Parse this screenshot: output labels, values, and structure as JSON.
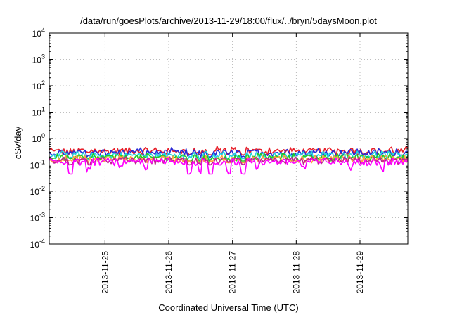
{
  "chart_data": {
    "type": "line",
    "title": "/data/run/goesPlots/archive/2013-11-29/18:00/flux/../bryn/5daysMoon.plot",
    "xlabel": "Coordinated Universal Time (UTC)",
    "ylabel": "cSv/day",
    "yscale": "log",
    "ylim": [
      0.0001,
      10000
    ],
    "xlim": [
      "2013-11-24 03:00",
      "2013-11-29 18:00"
    ],
    "y_ticks": [
      {
        "base": "10",
        "exp": "-4"
      },
      {
        "base": "10",
        "exp": "-3"
      },
      {
        "base": "10",
        "exp": "-2"
      },
      {
        "base": "10",
        "exp": "-1"
      },
      {
        "base": "10",
        "exp": "0"
      },
      {
        "base": "10",
        "exp": "1"
      },
      {
        "base": "10",
        "exp": "2"
      },
      {
        "base": "10",
        "exp": "3"
      },
      {
        "base": "10",
        "exp": "4"
      }
    ],
    "x_ticks": [
      "2013-11-25",
      "2013-11-26",
      "2013-11-27",
      "2013-11-28",
      "2013-11-29"
    ],
    "grid": true,
    "series": [
      {
        "color": "#e8202a",
        "base": 0.33,
        "min": 0.24,
        "max": 0.52
      },
      {
        "color": "#2a2ad8",
        "base": 0.29,
        "min": 0.2,
        "max": 0.45
      },
      {
        "color": "#20d4e0",
        "base": 0.23,
        "min": 0.16,
        "max": 0.33
      },
      {
        "color": "#22cc22",
        "base": 0.19,
        "min": 0.14,
        "max": 0.27
      },
      {
        "color": "#ffa040",
        "base": 0.165,
        "min": 0.12,
        "max": 0.23
      },
      {
        "color": "#c02090",
        "base": 0.145,
        "min": 0.1,
        "max": 0.2
      },
      {
        "color": "#ff00ff",
        "base": 0.13,
        "min": 0.045,
        "max": 0.18
      }
    ]
  }
}
